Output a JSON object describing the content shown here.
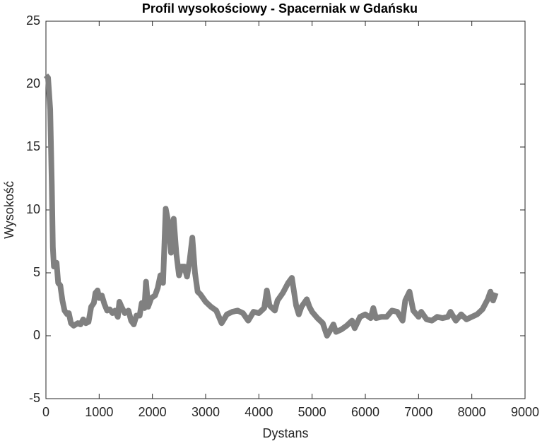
{
  "chart_data": {
    "type": "line",
    "title": "Profil wysokościowy - Spacerniak w Gdańsku",
    "x_label": "Dystans",
    "y_label": "Wysokość",
    "xlim": [
      0,
      9000
    ],
    "xticks": [
      0,
      1000,
      2000,
      3000,
      4000,
      5000,
      6000,
      7000,
      8000,
      9000
    ],
    "ylim": [
      -5,
      25
    ],
    "yticks": [
      -5,
      0,
      5,
      10,
      15,
      20,
      25
    ],
    "grid": false,
    "x": [
      0,
      40,
      80,
      110,
      130,
      150,
      200,
      230,
      270,
      310,
      350,
      400,
      430,
      470,
      520,
      600,
      650,
      700,
      750,
      800,
      850,
      900,
      930,
      970,
      1000,
      1050,
      1100,
      1150,
      1200,
      1250,
      1300,
      1350,
      1380,
      1420,
      1480,
      1550,
      1600,
      1650,
      1700,
      1760,
      1800,
      1850,
      1880,
      1920,
      1980,
      2050,
      2100,
      2150,
      2200,
      2250,
      2300,
      2350,
      2400,
      2450,
      2500,
      2550,
      2600,
      2650,
      2700,
      2750,
      2800,
      2850,
      2900,
      3000,
      3100,
      3200,
      3300,
      3400,
      3500,
      3600,
      3700,
      3800,
      3900,
      4000,
      4100,
      4150,
      4200,
      4300,
      4350,
      4450,
      4550,
      4620,
      4700,
      4750,
      4800,
      4900,
      4950,
      5000,
      5100,
      5200,
      5280,
      5350,
      5400,
      5450,
      5550,
      5650,
      5750,
      5800,
      5900,
      6000,
      6100,
      6150,
      6200,
      6300,
      6400,
      6500,
      6600,
      6700,
      6750,
      6830,
      6900,
      7000,
      7050,
      7150,
      7250,
      7350,
      7450,
      7550,
      7600,
      7700,
      7800,
      7900,
      8000,
      8100,
      8200,
      8300,
      8350,
      8400,
      8450
    ],
    "series": [
      {
        "name": "Wysokość",
        "color": "#808080",
        "values": [
          20.7,
          20.5,
          18,
          12,
          7,
          5.5,
          5.8,
          4.2,
          4.0,
          2.8,
          2.0,
          1.7,
          1.8,
          1.0,
          0.8,
          1.0,
          0.9,
          1.3,
          1.0,
          1.1,
          2.3,
          2.6,
          3.4,
          3.6,
          3.0,
          3.2,
          2.5,
          2.0,
          2.1,
          1.8,
          2.0,
          1.5,
          2.7,
          2.3,
          1.8,
          2.0,
          1.2,
          0.9,
          1.6,
          1.6,
          2.6,
          2.2,
          4.3,
          2.3,
          3.0,
          3.2,
          3.8,
          4.8,
          4.2,
          10.1,
          9.0,
          6.6,
          9.3,
          6.5,
          4.8,
          5.5,
          5.5,
          4.7,
          6.0,
          7.8,
          5.0,
          3.5,
          3.3,
          2.7,
          2.3,
          2.0,
          1.0,
          1.7,
          1.9,
          2.0,
          1.8,
          1.2,
          1.9,
          1.8,
          2.2,
          3.6,
          2.4,
          2.0,
          2.8,
          3.4,
          4.2,
          4.6,
          2.4,
          1.7,
          2.3,
          2.9,
          2.3,
          1.9,
          1.4,
          1.0,
          0.0,
          0.5,
          0.9,
          0.3,
          0.5,
          0.8,
          1.2,
          0.6,
          1.5,
          1.7,
          1.4,
          2.2,
          1.4,
          1.5,
          1.5,
          2.0,
          1.9,
          1.2,
          2.8,
          3.5,
          2.0,
          1.5,
          1.9,
          1.3,
          1.2,
          1.5,
          1.4,
          1.5,
          1.9,
          1.2,
          1.7,
          1.3,
          1.5,
          1.7,
          2.1,
          2.9,
          3.5,
          2.8,
          3.4
        ]
      }
    ]
  }
}
